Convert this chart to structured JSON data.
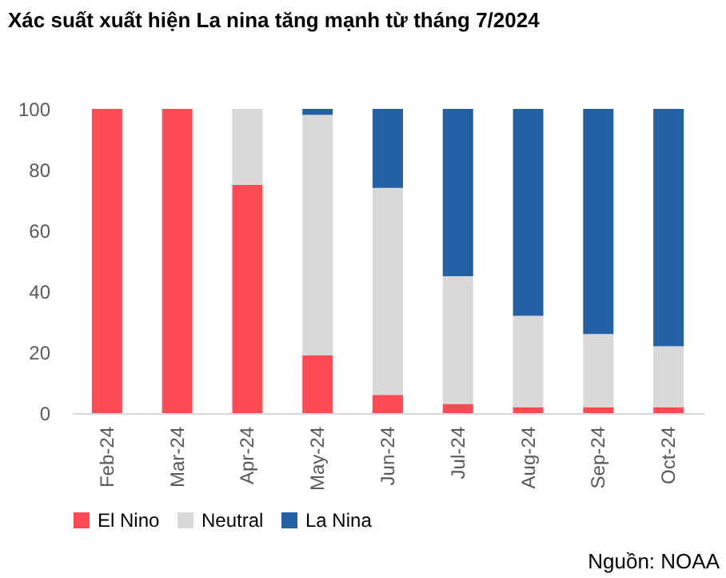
{
  "chart_data": {
    "type": "bar",
    "title": "Xác suất xuất hiện La nina tăng mạnh từ tháng 7/2024",
    "categories": [
      "Feb-24",
      "Mar-24",
      "Apr-24",
      "May-24",
      "Jun-24",
      "Jul-24",
      "Aug-24",
      "Sep-24",
      "Oct-24"
    ],
    "stacked": true,
    "series": [
      {
        "name": "El Nino",
        "color": "#ff4b55",
        "values": [
          100,
          100,
          75,
          19,
          6,
          3,
          2,
          2,
          2
        ]
      },
      {
        "name": "Neutral",
        "color": "#d9d9d9",
        "values": [
          0,
          0,
          25,
          79,
          68,
          42,
          30,
          24,
          20
        ]
      },
      {
        "name": "La Nina",
        "color": "#2660a4",
        "values": [
          0,
          0,
          0,
          2,
          26,
          55,
          68,
          74,
          78
        ]
      }
    ],
    "ylim": [
      0,
      100
    ],
    "yticks": [
      0,
      20,
      40,
      60,
      80,
      100
    ],
    "grid": false,
    "legend": "bottom",
    "annotations": [
      "Nguồn: NOAA"
    ]
  }
}
